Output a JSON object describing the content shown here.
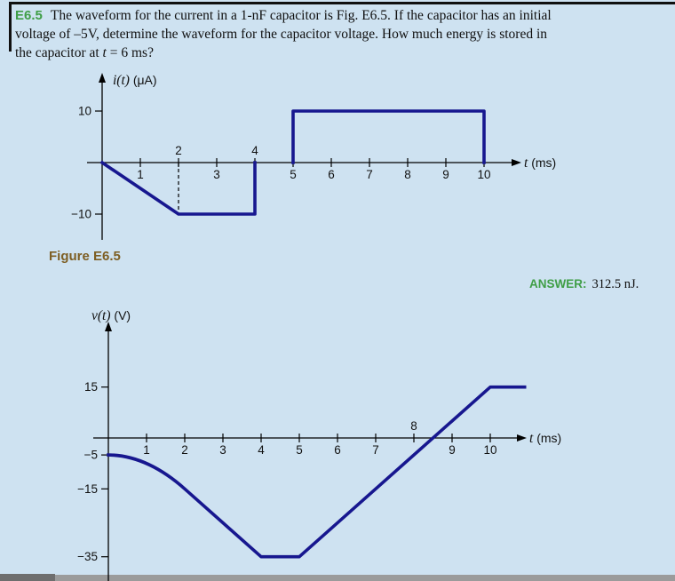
{
  "colors": {
    "background": "#cee2f1",
    "rule": "#101010",
    "axis": "#000000",
    "waveform": "#17178f",
    "accent_green": "#3f9e46",
    "caption_brown": "#7d5e23",
    "bar_gray_light": "#9b9b9b",
    "bar_gray_dark": "#6e6e6e"
  },
  "problem": {
    "label": "E6.5",
    "line1": "The waveform for the current in a  1-nF capacitor is Fig. E6.5. If the capacitor has an initial",
    "line2": "voltage of –5V, determine the waveform for the capacitor voltage. How much energy is stored in",
    "line3_before_var": "the capacitor at ",
    "line3_var": "t",
    "line3_after": " = 6 ms?"
  },
  "figure_caption": "Figure E6.5",
  "answer": {
    "label": "ANSWER:",
    "value": "312.5 nJ."
  },
  "chart_data": [
    {
      "type": "line",
      "title": "Current waveform i(t) of the 1-nF capacitor",
      "ylabel_var": "i(t)",
      "ylabel_unit": "(μA)",
      "xlabel_var": "t",
      "xlabel_unit": "(ms)",
      "xlim": [
        0,
        11
      ],
      "ylim": [
        -15,
        15
      ],
      "x_ticks": [
        {
          "v": 1,
          "above": false
        },
        {
          "v": 2,
          "above": true
        },
        {
          "v": 3,
          "above": false
        },
        {
          "v": 4,
          "above": true
        },
        {
          "v": 5,
          "above": false
        },
        {
          "v": 6,
          "above": false
        },
        {
          "v": 7,
          "above": false
        },
        {
          "v": 8,
          "above": false
        },
        {
          "v": 9,
          "above": false
        },
        {
          "v": 10,
          "above": false
        }
      ],
      "y_ticks": [
        {
          "v": 10,
          "label": "10"
        },
        {
          "v": -10,
          "label": "−10"
        }
      ],
      "guides": [
        {
          "x": 2,
          "y1": 0,
          "y2": -10
        }
      ],
      "series": [
        {
          "name": "i(t)",
          "units": {
            "x": "ms",
            "y": "μA"
          },
          "segments": [
            {
              "points": [
                [
                  0,
                  0
                ],
                [
                  2,
                  -10
                ],
                [
                  4,
                  -10
                ],
                [
                  4,
                  0
                ]
              ]
            },
            {
              "points": [
                [
                  5,
                  0
                ],
                [
                  5,
                  10
                ],
                [
                  10,
                  10
                ],
                [
                  10,
                  0
                ]
              ]
            }
          ]
        }
      ]
    },
    {
      "type": "line",
      "title": "Capacitor voltage waveform v(t)",
      "ylabel_var": "v(t)",
      "ylabel_unit": "(V)",
      "xlabel_var": "t",
      "xlabel_unit": "(ms)",
      "xlim": [
        0,
        11
      ],
      "ylim": [
        -40,
        25
      ],
      "x_ticks": [
        {
          "v": 1,
          "above": false
        },
        {
          "v": 2,
          "above": false
        },
        {
          "v": 3,
          "above": false
        },
        {
          "v": 4,
          "above": false
        },
        {
          "v": 5,
          "above": false
        },
        {
          "v": 6,
          "above": false
        },
        {
          "v": 7,
          "above": false
        },
        {
          "v": 8,
          "above": true
        },
        {
          "v": 9,
          "above": false
        },
        {
          "v": 10,
          "above": false
        }
      ],
      "y_ticks": [
        {
          "v": 15,
          "label": "15"
        },
        {
          "v": -5,
          "label": "−5"
        },
        {
          "v": -15,
          "label": "−15"
        },
        {
          "v": -35,
          "label": "−35"
        }
      ],
      "guides": [],
      "series": [
        {
          "name": "v(t)",
          "units": {
            "x": "ms",
            "y": "V"
          },
          "segments": [
            {
              "points": [
                [
                  0,
                  -5
                ],
                [
                  2,
                  -15
                ],
                [
                  4,
                  -35
                ],
                [
                  5,
                  -35
                ],
                [
                  10,
                  15
                ],
                [
                  10.9,
                  15
                ]
              ],
              "quad_control": [
                1,
                -5
              ]
            }
          ]
        }
      ]
    }
  ]
}
